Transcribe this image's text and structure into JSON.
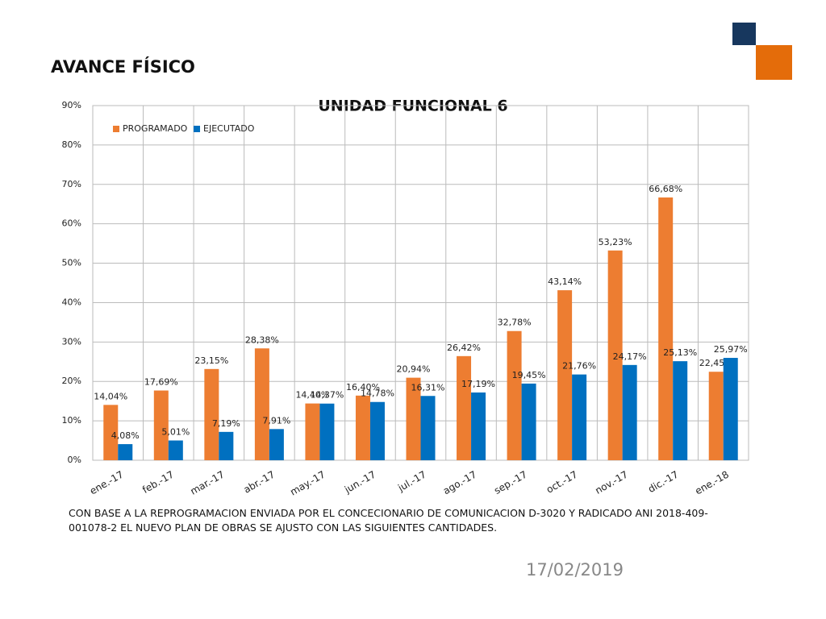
{
  "slide_title": "AVANCE FÍSICO",
  "chart_data": {
    "type": "bar",
    "title": "UNIDAD FUNCIONAL 6",
    "categories": [
      "ene.-17",
      "feb.-17",
      "mar.-17",
      "abr.-17",
      "may.-17",
      "jun.-17",
      "jul.-17",
      "ago.-17",
      "sep.-17",
      "oct.-17",
      "nov.-17",
      "dic.-17",
      "ene.-18"
    ],
    "series": [
      {
        "name": "PROGRAMADO",
        "color": "#ed7d31",
        "values": [
          14.04,
          17.69,
          23.15,
          28.38,
          14.4,
          16.4,
          20.94,
          26.42,
          32.78,
          43.14,
          53.23,
          66.68,
          22.45
        ],
        "value_labels": [
          "14,04%",
          "17,69%",
          "23,15%",
          "28,38%",
          "14,40%",
          "16,40%",
          "20,94%",
          "26,42%",
          "32,78%",
          "43,14%",
          "53,23%",
          "66,68%",
          "22,45%"
        ]
      },
      {
        "name": "EJECUTADO",
        "color": "#0070c0",
        "values": [
          4.08,
          5.01,
          7.19,
          7.91,
          14.37,
          14.78,
          16.31,
          17.19,
          19.45,
          21.76,
          24.17,
          25.13,
          25.97
        ],
        "value_labels": [
          "4,08%",
          "5,01%",
          "7,19%",
          "7,91%",
          "14,37%",
          "14,78%",
          "16,31%",
          "17,19%",
          "19,45%",
          "21,76%",
          "24,17%",
          "25,13%",
          "25,97%"
        ]
      }
    ],
    "ylim": [
      0,
      90
    ],
    "yticks": [
      {
        "value": 0,
        "label": "0%"
      },
      {
        "value": 10,
        "label": "10%"
      },
      {
        "value": 20,
        "label": "20%"
      },
      {
        "value": 30,
        "label": "30%"
      },
      {
        "value": 40,
        "label": "40%"
      },
      {
        "value": 50,
        "label": "50%"
      },
      {
        "value": 60,
        "label": "60%"
      },
      {
        "value": 70,
        "label": "70%"
      },
      {
        "value": 80,
        "label": "80%"
      },
      {
        "value": 90,
        "label": "90%"
      }
    ],
    "grid": true,
    "legend": "top-left"
  },
  "note": "CON BASE A LA REPROGRAMACION ENVIADA POR EL CONCECIONARIO DE COMUNICACION D-3020 Y RADICADO ANI  2018-409-001078-2 EL NUEVO PLAN  DE OBRAS SE AJUSTO CON LAS SIGUIENTES CANTIDADES.",
  "date": "17/02/2019"
}
